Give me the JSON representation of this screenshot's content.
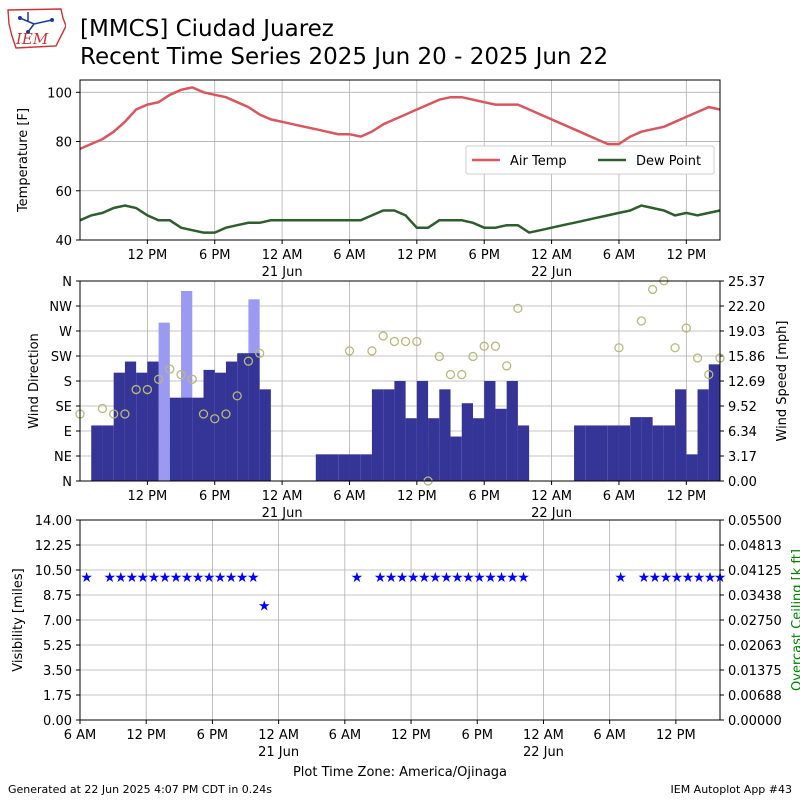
{
  "header": {
    "logo_text": "IEM",
    "title_line1": "[MMCS] Ciudad Juarez",
    "title_line2": "Recent Time Series 2025 Jun 20 - 2025 Jun 22"
  },
  "footer": {
    "left": "Generated at 22 Jun 2025 4:07 PM CDT in 0.24s",
    "right": "IEM Autoplot App #43"
  },
  "colors": {
    "air_temp": "#d9565f",
    "dew_point": "#2e5e2e",
    "wind_dir_bar": "#353597",
    "wind_gust_bar": "#9a9af2",
    "wind_speed_marker": "#b8b87a",
    "visibility": "#0000ff",
    "ceiling_label": "#008000",
    "grid": "#b0b0b0"
  },
  "chart_data": [
    {
      "type": "line",
      "name": "temperature",
      "ylabel": "Temperature [F]",
      "ylim": [
        40,
        105
      ],
      "yticks": [
        40,
        60,
        80,
        100
      ],
      "xlim_hours": [
        0,
        57
      ],
      "xticks": [
        {
          "h": 6,
          "label": "12 PM"
        },
        {
          "h": 12,
          "label": "6 PM"
        },
        {
          "h": 18,
          "label": "12 AM",
          "sub": "21 Jun"
        },
        {
          "h": 24,
          "label": "6 AM"
        },
        {
          "h": 30,
          "label": "12 PM"
        },
        {
          "h": 36,
          "label": "6 PM"
        },
        {
          "h": 42,
          "label": "12 AM",
          "sub": "22 Jun"
        },
        {
          "h": 48,
          "label": "6 AM"
        },
        {
          "h": 54,
          "label": "12 PM"
        }
      ],
      "grid": true,
      "legend": "right",
      "series": [
        {
          "name": "Air Temp",
          "color_key": "air_temp",
          "x": [
            0,
            1,
            2,
            3,
            4,
            5,
            6,
            7,
            8,
            9,
            10,
            11,
            12,
            13,
            14,
            15,
            16,
            17,
            18,
            19,
            20,
            21,
            22,
            23,
            24,
            25,
            26,
            27,
            28,
            29,
            30,
            31,
            32,
            33,
            34,
            35,
            36,
            37,
            38,
            39,
            40,
            41,
            42,
            43,
            44,
            45,
            46,
            47,
            48,
            49,
            50,
            51,
            52,
            53,
            54,
            55,
            56,
            57
          ],
          "y": [
            77,
            79,
            81,
            84,
            88,
            93,
            95,
            96,
            99,
            101,
            102,
            100,
            99,
            98,
            96,
            94,
            91,
            89,
            88,
            87,
            86,
            85,
            84,
            83,
            83,
            82,
            84,
            87,
            89,
            91,
            93,
            95,
            97,
            98,
            98,
            97,
            96,
            95,
            95,
            95,
            93,
            91,
            89,
            87,
            85,
            83,
            81,
            79,
            79,
            82,
            84,
            85,
            86,
            88,
            90,
            92,
            94,
            93
          ]
        },
        {
          "name": "Dew Point",
          "color_key": "dew_point",
          "x": [
            0,
            1,
            2,
            3,
            4,
            5,
            6,
            7,
            8,
            9,
            10,
            11,
            12,
            13,
            14,
            15,
            16,
            17,
            18,
            19,
            20,
            21,
            22,
            23,
            24,
            25,
            26,
            27,
            28,
            29,
            30,
            31,
            32,
            33,
            34,
            35,
            36,
            37,
            38,
            39,
            40,
            41,
            42,
            43,
            44,
            45,
            46,
            47,
            48,
            49,
            50,
            51,
            52,
            53,
            54,
            55,
            56,
            57
          ],
          "y": [
            48,
            50,
            51,
            53,
            54,
            53,
            50,
            48,
            48,
            45,
            44,
            43,
            43,
            45,
            46,
            47,
            47,
            48,
            48,
            48,
            48,
            48,
            48,
            48,
            48,
            48,
            50,
            52,
            52,
            50,
            45,
            45,
            48,
            48,
            48,
            47,
            45,
            45,
            46,
            46,
            43,
            44,
            45,
            46,
            47,
            48,
            49,
            50,
            51,
            52,
            54,
            53,
            52,
            50,
            51,
            50,
            51,
            52
          ]
        }
      ]
    },
    {
      "type": "bar",
      "name": "wind",
      "ylabel": "Wind Direction",
      "ylabel_right": "Wind Speed [mph]",
      "dir_labels": [
        "N",
        "NE",
        "E",
        "SE",
        "S",
        "SW",
        "W",
        "NW",
        "N"
      ],
      "dir_range_deg": [
        0,
        360
      ],
      "speed_ticks": [
        "0.00",
        "3.17",
        "6.34",
        "9.52",
        "12.69",
        "15.86",
        "19.03",
        "22.20",
        "25.37"
      ],
      "speed_range_mph": [
        0,
        25.37
      ],
      "xlim_hours": [
        0,
        57
      ],
      "grid": true,
      "direction": [
        {
          "h": 1,
          "deg": 100
        },
        {
          "h": 2,
          "deg": 100
        },
        {
          "h": 3,
          "deg": 195
        },
        {
          "h": 4,
          "deg": 215
        },
        {
          "h": 5,
          "deg": 195
        },
        {
          "h": 6,
          "deg": 215
        },
        {
          "h": 8,
          "deg": 150
        },
        {
          "h": 9,
          "deg": 150
        },
        {
          "h": 10,
          "deg": 150
        },
        {
          "h": 11,
          "deg": 200
        },
        {
          "h": 12,
          "deg": 195
        },
        {
          "h": 13,
          "deg": 215
        },
        {
          "h": 14,
          "deg": 230
        },
        {
          "h": 15,
          "deg": 230
        },
        {
          "h": 16,
          "deg": 165
        },
        {
          "h": 21,
          "deg": 48
        },
        {
          "h": 22,
          "deg": 48
        },
        {
          "h": 23,
          "deg": 48
        },
        {
          "h": 24,
          "deg": 48
        },
        {
          "h": 25,
          "deg": 48
        },
        {
          "h": 26,
          "deg": 165
        },
        {
          "h": 27,
          "deg": 165
        },
        {
          "h": 28,
          "deg": 180
        },
        {
          "h": 29,
          "deg": 113
        },
        {
          "h": 30,
          "deg": 180
        },
        {
          "h": 31,
          "deg": 113
        },
        {
          "h": 32,
          "deg": 165
        },
        {
          "h": 33,
          "deg": 80
        },
        {
          "h": 34,
          "deg": 140
        },
        {
          "h": 35,
          "deg": 113
        },
        {
          "h": 36,
          "deg": 180
        },
        {
          "h": 37,
          "deg": 130
        },
        {
          "h": 38,
          "deg": 180
        },
        {
          "h": 39,
          "deg": 100
        },
        {
          "h": 44,
          "deg": 100
        },
        {
          "h": 45,
          "deg": 100
        },
        {
          "h": 46,
          "deg": 100
        },
        {
          "h": 47,
          "deg": 100
        },
        {
          "h": 48,
          "deg": 100
        },
        {
          "h": 49,
          "deg": 115
        },
        {
          "h": 50,
          "deg": 115
        },
        {
          "h": 51,
          "deg": 100
        },
        {
          "h": 52,
          "deg": 100
        },
        {
          "h": 53,
          "deg": 165
        },
        {
          "h": 54,
          "deg": 48
        },
        {
          "h": 55,
          "deg": 165
        },
        {
          "h": 56,
          "deg": 210
        }
      ],
      "gust_direction": [
        {
          "h": 7,
          "deg": 285
        },
        {
          "h": 9,
          "deg": 342
        },
        {
          "h": 15,
          "deg": 327
        }
      ],
      "speed_x": [
        0,
        2,
        3,
        4,
        5,
        6,
        7,
        8,
        9,
        10,
        11,
        12,
        13,
        14,
        15,
        16,
        24,
        26,
        27,
        28,
        29,
        30,
        31,
        32,
        33,
        34,
        35,
        36,
        37,
        38,
        39,
        48,
        50,
        51,
        52,
        53,
        54,
        55,
        56,
        57
      ],
      "speed_mph": [
        8.5,
        9.2,
        8.5,
        8.5,
        11.6,
        11.6,
        12.9,
        14.2,
        13.5,
        12.9,
        8.5,
        7.9,
        8.5,
        10.8,
        15.2,
        16.2,
        16.5,
        16.5,
        18.4,
        17.7,
        17.7,
        17.7,
        0.0,
        15.8,
        13.5,
        13.5,
        15.8,
        17.1,
        17.1,
        14.6,
        21.9,
        16.9,
        20.3,
        24.3,
        25.4,
        16.9,
        19.4,
        15.6,
        13.5,
        15.6
      ]
    },
    {
      "type": "scatter",
      "name": "visibility",
      "ylabel": "Visibility [miles]",
      "ylabel_right": "Overcast Ceiling [k ft]",
      "ylim": [
        0,
        14
      ],
      "yticks": [
        "0.00",
        "1.75",
        "3.50",
        "5.25",
        "7.00",
        "8.75",
        "10.50",
        "12.25",
        "14.00"
      ],
      "right_ticks": [
        "0.00000",
        "0.00688",
        "0.01375",
        "0.02063",
        "0.02750",
        "0.03438",
        "0.04125",
        "0.04813",
        "0.05500"
      ],
      "xlim_hours": [
        0,
        58
      ],
      "xticks": [
        {
          "h": 0,
          "label": "6 AM"
        },
        {
          "h": 6,
          "label": "12 PM"
        },
        {
          "h": 12,
          "label": "6 PM"
        },
        {
          "h": 18,
          "label": "12 AM",
          "sub": "21 Jun"
        },
        {
          "h": 24,
          "label": "6 AM"
        },
        {
          "h": 30,
          "label": "12 PM"
        },
        {
          "h": 36,
          "label": "6 PM"
        },
        {
          "h": 42,
          "label": "12 AM",
          "sub": "22 Jun"
        },
        {
          "h": 48,
          "label": "6 AM"
        },
        {
          "h": 54,
          "label": "12 PM"
        }
      ],
      "xlabel": "Plot Time Zone: America/Ojinaga",
      "grid": true,
      "x": [
        0.6,
        2.7,
        3.7,
        4.7,
        5.7,
        6.7,
        7.7,
        8.7,
        9.7,
        10.7,
        11.7,
        12.7,
        13.7,
        14.7,
        15.7,
        16.7,
        25.1,
        27.2,
        28.2,
        29.2,
        30.2,
        31.2,
        32.2,
        33.2,
        34.2,
        35.2,
        36.2,
        37.2,
        38.2,
        39.2,
        40.2,
        49.0,
        51.1,
        52.1,
        53.1,
        54.1,
        55.1,
        56.1,
        57.1,
        58.0
      ],
      "y": [
        10,
        10,
        10,
        10,
        10,
        10,
        10,
        10,
        10,
        10,
        10,
        10,
        10,
        10,
        10,
        8,
        10,
        10,
        10,
        10,
        10,
        10,
        10,
        10,
        10,
        10,
        10,
        10,
        10,
        10,
        10,
        10,
        10,
        10,
        10,
        10,
        10,
        10,
        10,
        10
      ]
    }
  ]
}
